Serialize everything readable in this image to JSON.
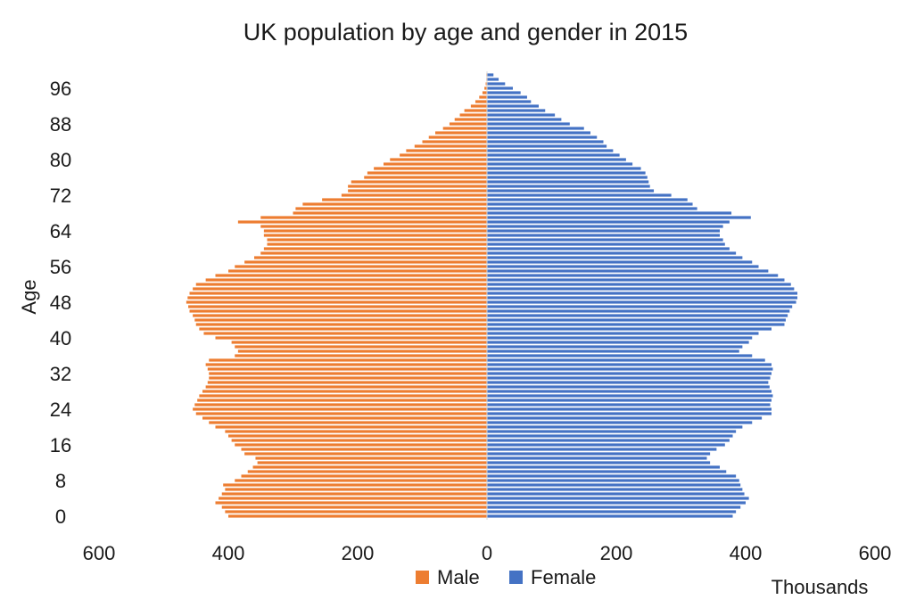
{
  "chart_data": {
    "type": "bar",
    "orientation": "horizontal",
    "title": "UK population by age and gender in 2015",
    "ylabel": "Age",
    "xlabel": "Thousands",
    "xlim": [
      -600,
      600
    ],
    "x_ticks": [
      -600,
      -400,
      -200,
      0,
      200,
      400,
      600
    ],
    "x_tick_labels": [
      "600",
      "400",
      "200",
      "0",
      "200",
      "400",
      "600"
    ],
    "y_ticks": [
      0,
      8,
      16,
      24,
      32,
      40,
      48,
      56,
      64,
      72,
      80,
      88,
      96
    ],
    "y_tick_labels": [
      "0",
      "8",
      "16",
      "24",
      "32",
      "40",
      "48",
      "56",
      "64",
      "72",
      "80",
      "88",
      "96"
    ],
    "ages": [
      0,
      1,
      2,
      3,
      4,
      5,
      6,
      7,
      8,
      9,
      10,
      11,
      12,
      13,
      14,
      15,
      16,
      17,
      18,
      19,
      20,
      21,
      22,
      23,
      24,
      25,
      26,
      27,
      28,
      29,
      30,
      31,
      32,
      33,
      34,
      35,
      36,
      37,
      38,
      39,
      40,
      41,
      42,
      43,
      44,
      45,
      46,
      47,
      48,
      49,
      50,
      51,
      52,
      53,
      54,
      55,
      56,
      57,
      58,
      59,
      60,
      61,
      62,
      63,
      64,
      65,
      66,
      67,
      68,
      69,
      70,
      71,
      72,
      73,
      74,
      75,
      76,
      77,
      78,
      79,
      80,
      81,
      82,
      83,
      84,
      85,
      86,
      87,
      88,
      89,
      90,
      91,
      92,
      93,
      94,
      95,
      96,
      97,
      98,
      99
    ],
    "series": [
      {
        "name": "Male",
        "color": "#ED7D31",
        "values": [
          400,
          405,
          410,
          420,
          415,
          410,
          405,
          408,
          390,
          380,
          370,
          362,
          355,
          358,
          375,
          380,
          390,
          395,
          400,
          405,
          420,
          430,
          440,
          450,
          455,
          452,
          448,
          445,
          440,
          435,
          432,
          430,
          430,
          432,
          435,
          430,
          390,
          385,
          390,
          395,
          420,
          438,
          445,
          450,
          452,
          455,
          460,
          462,
          465,
          463,
          460,
          455,
          450,
          435,
          420,
          400,
          390,
          375,
          360,
          350,
          345,
          340,
          340,
          345,
          345,
          350,
          385,
          350,
          300,
          296,
          285,
          255,
          225,
          215,
          215,
          210,
          190,
          185,
          175,
          160,
          150,
          135,
          125,
          112,
          100,
          90,
          80,
          68,
          58,
          50,
          42,
          35,
          25,
          18,
          12,
          7,
          4,
          2,
          1,
          1
        ]
      },
      {
        "name": "Female",
        "color": "#4472C4",
        "values": [
          380,
          385,
          392,
          400,
          405,
          398,
          395,
          392,
          390,
          385,
          370,
          360,
          345,
          340,
          345,
          355,
          368,
          375,
          380,
          385,
          395,
          410,
          425,
          440,
          440,
          438,
          440,
          442,
          440,
          437,
          435,
          438,
          440,
          442,
          440,
          430,
          410,
          390,
          395,
          405,
          410,
          420,
          440,
          460,
          462,
          465,
          468,
          472,
          478,
          480,
          480,
          475,
          470,
          460,
          450,
          435,
          420,
          410,
          395,
          385,
          375,
          368,
          365,
          360,
          360,
          365,
          375,
          408,
          378,
          325,
          318,
          310,
          285,
          258,
          252,
          250,
          248,
          245,
          238,
          225,
          215,
          205,
          195,
          185,
          180,
          170,
          160,
          150,
          128,
          115,
          105,
          90,
          80,
          68,
          62,
          52,
          40,
          28,
          18,
          10
        ]
      }
    ],
    "legend": {
      "placement": "bottom-center",
      "entries": [
        "Male",
        "Female"
      ]
    },
    "grid": false
  }
}
